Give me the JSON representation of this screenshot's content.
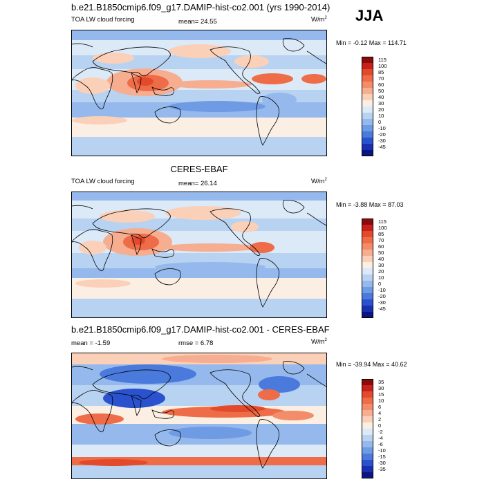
{
  "season": "JJA",
  "panels": [
    {
      "id": "model",
      "title": "b.e21.B1850cmip6.f09_g17.DAMIP-hist-co2.001 (yrs 1990-2014)",
      "left_label": "TOA LW cloud forcing",
      "center_label": "mean=  24.55",
      "units": "W/m",
      "units_sup": "2",
      "minmax": "Min =  -0.12 Max = 114.71",
      "colorbar": [
        {
          "label": "115",
          "color": "#8b0a0a"
        },
        {
          "label": "100",
          "color": "#c8201b"
        },
        {
          "label": "85",
          "color": "#e34a2b"
        },
        {
          "label": "70",
          "color": "#ee6c47"
        },
        {
          "label": "60",
          "color": "#f38c69"
        },
        {
          "label": "50",
          "color": "#f7ad90"
        },
        {
          "label": "40",
          "color": "#fbd0b8"
        },
        {
          "label": "30",
          "color": "#fbeee2"
        },
        {
          "label": "20",
          "color": "#dce9f7"
        },
        {
          "label": "10",
          "color": "#b8d2f1"
        },
        {
          "label": "0",
          "color": "#95b9ec"
        },
        {
          "label": "-10",
          "color": "#6f9be4"
        },
        {
          "label": "-20",
          "color": "#4a7bdc"
        },
        {
          "label": "-30",
          "color": "#2a52cf"
        },
        {
          "label": "-45",
          "color": "#1a2fb0"
        },
        {
          "label": "",
          "color": "#0a1680"
        }
      ]
    },
    {
      "id": "obs",
      "title": "CERES-EBAF",
      "left_label": "TOA LW cloud forcing",
      "center_label": "mean=  26.14",
      "units": "W/m",
      "units_sup": "2",
      "minmax": "Min =  -3.88 Max =  87.03",
      "colorbar": [
        {
          "label": "115",
          "color": "#8b0a0a"
        },
        {
          "label": "100",
          "color": "#c8201b"
        },
        {
          "label": "85",
          "color": "#e34a2b"
        },
        {
          "label": "70",
          "color": "#ee6c47"
        },
        {
          "label": "60",
          "color": "#f38c69"
        },
        {
          "label": "50",
          "color": "#f7ad90"
        },
        {
          "label": "40",
          "color": "#fbd0b8"
        },
        {
          "label": "30",
          "color": "#fbeee2"
        },
        {
          "label": "20",
          "color": "#dce9f7"
        },
        {
          "label": "10",
          "color": "#b8d2f1"
        },
        {
          "label": "0",
          "color": "#95b9ec"
        },
        {
          "label": "-10",
          "color": "#6f9be4"
        },
        {
          "label": "-20",
          "color": "#4a7bdc"
        },
        {
          "label": "-30",
          "color": "#2a52cf"
        },
        {
          "label": "-45",
          "color": "#1a2fb0"
        },
        {
          "label": "",
          "color": "#0a1680"
        }
      ]
    },
    {
      "id": "diff",
      "title": "b.e21.B1850cmip6.f09_g17.DAMIP-hist-co2.001 - CERES-EBAF",
      "left_label": "mean =  -1.59",
      "center_label": "rmse =  6.78",
      "units": "W/m",
      "units_sup": "2",
      "minmax": "Min = -39.94 Max =  40.62",
      "colorbar": [
        {
          "label": "35",
          "color": "#8b0a0a"
        },
        {
          "label": "30",
          "color": "#c8201b"
        },
        {
          "label": "15",
          "color": "#e34a2b"
        },
        {
          "label": "10",
          "color": "#ee6c47"
        },
        {
          "label": "6",
          "color": "#f38c69"
        },
        {
          "label": "4",
          "color": "#f7ad90"
        },
        {
          "label": "2",
          "color": "#fbd0b8"
        },
        {
          "label": "0",
          "color": "#fbeee2"
        },
        {
          "label": "-2",
          "color": "#dce9f7"
        },
        {
          "label": "-4",
          "color": "#b8d2f1"
        },
        {
          "label": "-6",
          "color": "#95b9ec"
        },
        {
          "label": "-10",
          "color": "#6f9be4"
        },
        {
          "label": "-15",
          "color": "#4a7bdc"
        },
        {
          "label": "-30",
          "color": "#2a52cf"
        },
        {
          "label": "-35",
          "color": "#1a2fb0"
        },
        {
          "label": "",
          "color": "#0a1680"
        }
      ]
    }
  ]
}
